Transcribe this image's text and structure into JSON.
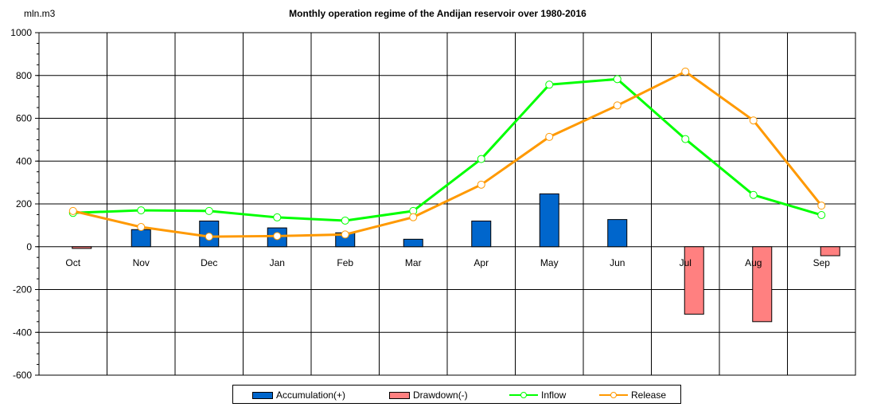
{
  "chart_data": {
    "type": "bar",
    "title": "Monthly operation regime of the Andijan reservoir over 1980-2016",
    "ylabel": "mln.m3",
    "xlabel": "",
    "categories": [
      "Oct",
      "Nov",
      "Dec",
      "Jan",
      "Feb",
      "Mar",
      "Apr",
      "May",
      "Jun",
      "Jul",
      "Aug",
      "Sep"
    ],
    "ylim": [
      -600,
      1000
    ],
    "yticks": [
      -600,
      -400,
      -200,
      0,
      200,
      400,
      600,
      800,
      1000
    ],
    "grid": true,
    "legend_position": "bottom",
    "series": [
      {
        "name": "Accumulation(+)",
        "kind": "bar",
        "color": "#0066CC",
        "values": [
          0,
          80,
          120,
          88,
          65,
          35,
          120,
          247,
          127,
          0,
          0,
          0
        ]
      },
      {
        "name": "Drawdown(-)",
        "kind": "bar",
        "color": "#FF8080",
        "values": [
          -8,
          0,
          0,
          0,
          0,
          0,
          0,
          0,
          0,
          -315,
          -350,
          -42
        ]
      },
      {
        "name": "Inflow",
        "kind": "line",
        "color": "#00FF00",
        "values": [
          158,
          170,
          167,
          137,
          122,
          167,
          410,
          757,
          783,
          503,
          242,
          148
        ]
      },
      {
        "name": "Release",
        "kind": "line",
        "color": "#FF9900",
        "values": [
          167,
          92,
          47,
          50,
          57,
          138,
          290,
          513,
          660,
          818,
          590,
          192
        ]
      }
    ]
  }
}
